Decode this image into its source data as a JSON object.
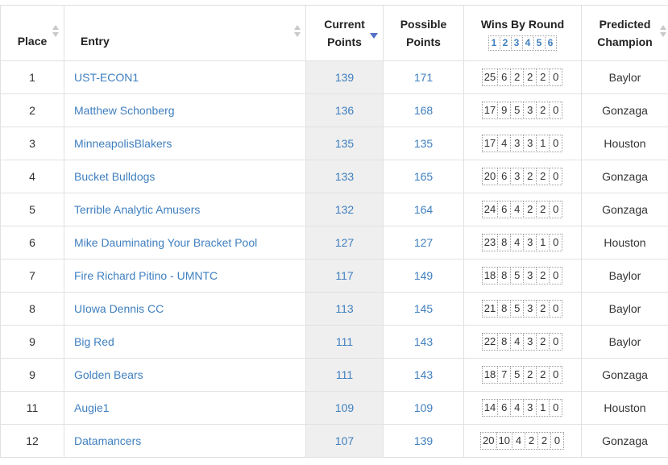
{
  "headers": {
    "place": "Place",
    "entry": "Entry",
    "current_1": "Current",
    "current_2": "Points",
    "possible_1": "Possible",
    "possible_2": "Points",
    "wins": "Wins By Round",
    "rounds": [
      "1",
      "2",
      "3",
      "4",
      "5",
      "6"
    ],
    "predicted_1": "Predicted",
    "predicted_2": "Champion"
  },
  "sort_icon": "sort-desc-icon",
  "colors": {
    "link": "#3f7fbf",
    "sort_active": "#5570c8",
    "current_bg": "#efefef"
  },
  "rows": [
    {
      "place": "1",
      "entry": "UST-ECON1",
      "current": "139",
      "possible": "171",
      "wins": [
        "25",
        "6",
        "2",
        "2",
        "2",
        "0"
      ],
      "champion": "Baylor"
    },
    {
      "place": "2",
      "entry": "Matthew Schonberg",
      "current": "136",
      "possible": "168",
      "wins": [
        "17",
        "9",
        "5",
        "3",
        "2",
        "0"
      ],
      "champion": "Gonzaga"
    },
    {
      "place": "3",
      "entry": "MinneapolisBlakers",
      "current": "135",
      "possible": "135",
      "wins": [
        "17",
        "4",
        "3",
        "3",
        "1",
        "0"
      ],
      "champion": "Houston"
    },
    {
      "place": "4",
      "entry": "Bucket Bulldogs",
      "current": "133",
      "possible": "165",
      "wins": [
        "20",
        "6",
        "3",
        "2",
        "2",
        "0"
      ],
      "champion": "Gonzaga"
    },
    {
      "place": "5",
      "entry": "Terrible Analytic Amusers",
      "current": "132",
      "possible": "164",
      "wins": [
        "24",
        "6",
        "4",
        "2",
        "2",
        "0"
      ],
      "champion": "Gonzaga"
    },
    {
      "place": "6",
      "entry": "Mike Dauminating Your Bracket Pool",
      "current": "127",
      "possible": "127",
      "wins": [
        "23",
        "8",
        "4",
        "3",
        "1",
        "0"
      ],
      "champion": "Houston"
    },
    {
      "place": "7",
      "entry": "Fire Richard Pitino - UMNTC",
      "current": "117",
      "possible": "149",
      "wins": [
        "18",
        "8",
        "5",
        "3",
        "2",
        "0"
      ],
      "champion": "Baylor"
    },
    {
      "place": "8",
      "entry": "UIowa Dennis CC",
      "current": "113",
      "possible": "145",
      "wins": [
        "21",
        "8",
        "5",
        "3",
        "2",
        "0"
      ],
      "champion": "Baylor"
    },
    {
      "place": "9",
      "entry": "Big Red",
      "current": "111",
      "possible": "143",
      "wins": [
        "22",
        "8",
        "4",
        "3",
        "2",
        "0"
      ],
      "champion": "Baylor"
    },
    {
      "place": "9",
      "entry": "Golden Bears",
      "current": "111",
      "possible": "143",
      "wins": [
        "18",
        "7",
        "5",
        "2",
        "2",
        "0"
      ],
      "champion": "Gonzaga"
    },
    {
      "place": "11",
      "entry": "Augie1",
      "current": "109",
      "possible": "109",
      "wins": [
        "14",
        "6",
        "4",
        "3",
        "1",
        "0"
      ],
      "champion": "Houston"
    },
    {
      "place": "12",
      "entry": "Datamancers",
      "current": "107",
      "possible": "139",
      "wins": [
        "20",
        "10",
        "4",
        "2",
        "2",
        "0"
      ],
      "champion": "Gonzaga"
    }
  ]
}
